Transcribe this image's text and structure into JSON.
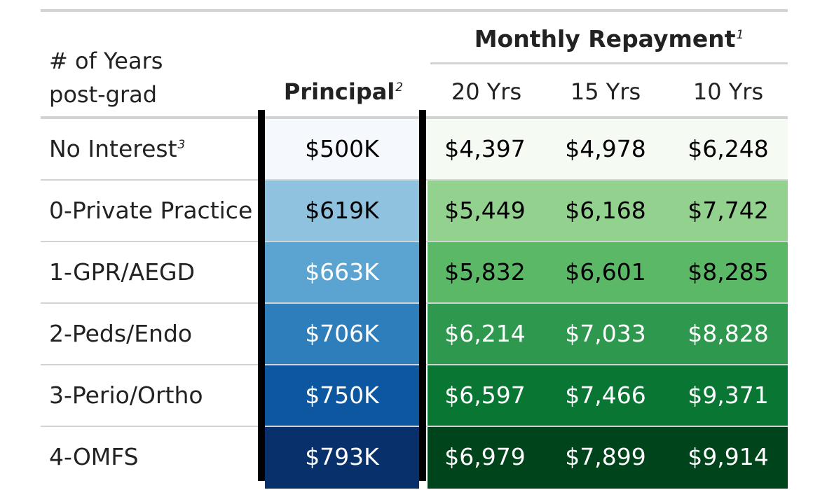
{
  "header": {
    "group_title": "Monthly Repayment",
    "group_note": "1",
    "stub_line1": "# of Years",
    "stub_line2": "post-grad",
    "principal_label": "Principal",
    "principal_note": "2",
    "col_20": "20 Yrs",
    "col_15": "15 Yrs",
    "col_10": "10 Yrs"
  },
  "rows": [
    {
      "label": "No Interest",
      "note": "3",
      "principal": "$500K",
      "y20": "$4,397",
      "y15": "$4,978",
      "y10": "$6,248",
      "blue": "#f5f9fe",
      "green": "#f5fbf3",
      "blue_text": "#000000",
      "green_text": "#000000"
    },
    {
      "label": "0-Private Practice",
      "note": "",
      "principal": "$619K",
      "y20": "$5,449",
      "y15": "$6,168",
      "y10": "$7,742",
      "blue": "#8fc2de",
      "green": "#92d28e",
      "blue_text": "#000000",
      "green_text": "#000000"
    },
    {
      "label": "1-GPR/AEGD",
      "note": "",
      "principal": "$663K",
      "y20": "$5,832",
      "y15": "$6,601",
      "y10": "$8,285",
      "blue": "#5ba3d0",
      "green": "#5bb867",
      "blue_text": "#ffffff",
      "green_text": "#000000"
    },
    {
      "label": "2-Peds/Endo",
      "note": "",
      "principal": "$706K",
      "y20": "$6,214",
      "y15": "$7,033",
      "y10": "$8,828",
      "blue": "#2e7ebc",
      "green": "#2f984f",
      "blue_text": "#ffffff",
      "green_text": "#ffffff"
    },
    {
      "label": "3-Perio/Ortho",
      "note": "",
      "principal": "$750K",
      "y20": "$6,597",
      "y15": "$7,466",
      "y10": "$9,371",
      "blue": "#0d57a1",
      "green": "#0a7633",
      "blue_text": "#ffffff",
      "green_text": "#ffffff"
    },
    {
      "label": "4-OMFS",
      "note": "",
      "principal": "$793K",
      "y20": "$6,979",
      "y15": "$7,899",
      "y10": "$9,914",
      "blue": "#08306b",
      "green": "#00441b",
      "blue_text": "#ffffff",
      "green_text": "#ffffff"
    }
  ]
}
